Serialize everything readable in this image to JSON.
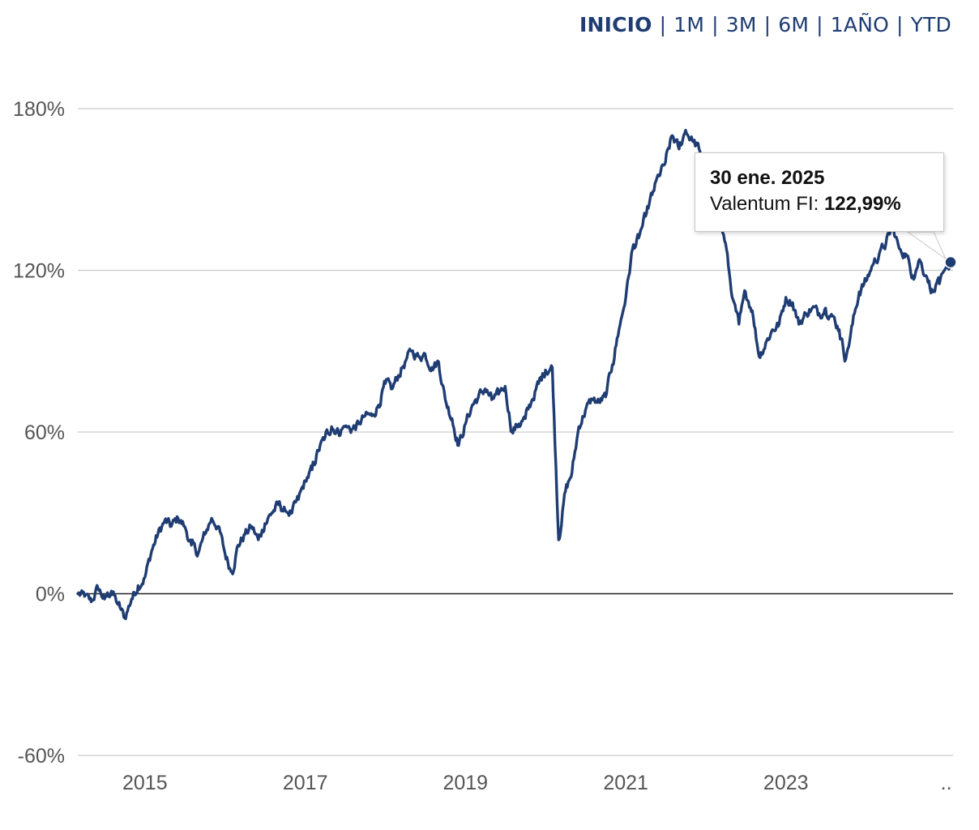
{
  "range_selector": {
    "options": [
      "INICIO",
      "1M",
      "3M",
      "6M",
      "1AÑO",
      "YTD"
    ],
    "active": "INICIO",
    "separator": "|"
  },
  "tooltip": {
    "date": "30 ene. 2025",
    "series": "Valentum FI:",
    "value": "122,99%"
  },
  "colors": {
    "series_line": "#1f3d73",
    "grid": "#cccccc",
    "zero_line": "#222222",
    "tick_text": "#555555"
  },
  "chart_data": {
    "type": "line",
    "ylim": [
      -60,
      180
    ],
    "y_ticks": [
      -60,
      0,
      60,
      120,
      180
    ],
    "y_tick_labels": [
      "-60%",
      "0%",
      "60%",
      "120%",
      "180%"
    ],
    "x_range": [
      "2014-03-01",
      "2025-02-01"
    ],
    "x_ticks": [
      "2015-01-01",
      "2017-01-01",
      "2019-01-01",
      "2021-01-01",
      "2023-01-01",
      "2025-01-01"
    ],
    "x_tick_labels": [
      "2015",
      "2017",
      "2019",
      "2021",
      "2023",
      ".."
    ],
    "grid": true,
    "legend": "none",
    "series": [
      {
        "name": "Valentum FI",
        "points": [
          [
            "2014-03-01",
            0
          ],
          [
            "2014-04-01",
            -1
          ],
          [
            "2014-05-01",
            -3
          ],
          [
            "2014-06-01",
            2
          ],
          [
            "2014-07-01",
            -2
          ],
          [
            "2014-08-01",
            1
          ],
          [
            "2014-09-01",
            -4
          ],
          [
            "2014-10-01",
            -9
          ],
          [
            "2014-11-01",
            -2
          ],
          [
            "2014-12-01",
            3
          ],
          [
            "2015-01-01",
            6
          ],
          [
            "2015-02-01",
            16
          ],
          [
            "2015-03-01",
            22
          ],
          [
            "2015-04-01",
            27
          ],
          [
            "2015-05-01",
            25
          ],
          [
            "2015-06-01",
            28
          ],
          [
            "2015-07-01",
            25
          ],
          [
            "2015-08-01",
            18
          ],
          [
            "2015-09-01",
            15
          ],
          [
            "2015-10-01",
            22
          ],
          [
            "2015-11-01",
            28
          ],
          [
            "2015-12-01",
            25
          ],
          [
            "2016-01-01",
            15
          ],
          [
            "2016-02-01",
            8
          ],
          [
            "2016-03-01",
            18
          ],
          [
            "2016-04-01",
            22
          ],
          [
            "2016-05-01",
            25
          ],
          [
            "2016-06-01",
            20
          ],
          [
            "2016-07-01",
            26
          ],
          [
            "2016-08-01",
            30
          ],
          [
            "2016-09-01",
            33
          ],
          [
            "2016-10-01",
            31
          ],
          [
            "2016-11-01",
            30
          ],
          [
            "2016-12-01",
            35
          ],
          [
            "2017-01-01",
            42
          ],
          [
            "2017-02-01",
            46
          ],
          [
            "2017-03-01",
            53
          ],
          [
            "2017-04-01",
            58
          ],
          [
            "2017-05-01",
            62
          ],
          [
            "2017-06-01",
            60
          ],
          [
            "2017-07-01",
            62
          ],
          [
            "2017-08-01",
            61
          ],
          [
            "2017-09-01",
            63
          ],
          [
            "2017-10-01",
            66
          ],
          [
            "2017-11-01",
            66
          ],
          [
            "2017-12-01",
            70
          ],
          [
            "2018-01-01",
            78
          ],
          [
            "2018-02-01",
            76
          ],
          [
            "2018-03-01",
            81
          ],
          [
            "2018-04-01",
            86
          ],
          [
            "2018-05-01",
            90
          ],
          [
            "2018-06-01",
            88
          ],
          [
            "2018-07-01",
            89
          ],
          [
            "2018-08-01",
            84
          ],
          [
            "2018-09-01",
            86
          ],
          [
            "2018-10-01",
            72
          ],
          [
            "2018-11-01",
            65
          ],
          [
            "2018-12-01",
            55
          ],
          [
            "2019-01-01",
            63
          ],
          [
            "2019-02-01",
            70
          ],
          [
            "2019-03-01",
            73
          ],
          [
            "2019-04-01",
            76
          ],
          [
            "2019-05-01",
            72
          ],
          [
            "2019-06-01",
            74
          ],
          [
            "2019-07-01",
            77
          ],
          [
            "2019-08-01",
            60
          ],
          [
            "2019-09-01",
            63
          ],
          [
            "2019-10-01",
            65
          ],
          [
            "2019-11-01",
            72
          ],
          [
            "2019-12-01",
            78
          ],
          [
            "2020-01-01",
            83
          ],
          [
            "2020-02-01",
            84
          ],
          [
            "2020-03-01",
            20
          ],
          [
            "2020-04-01",
            38
          ],
          [
            "2020-05-01",
            45
          ],
          [
            "2020-06-01",
            62
          ],
          [
            "2020-07-01",
            68
          ],
          [
            "2020-08-01",
            72
          ],
          [
            "2020-09-01",
            71
          ],
          [
            "2020-10-01",
            73
          ],
          [
            "2020-11-01",
            85
          ],
          [
            "2020-12-01",
            98
          ],
          [
            "2021-01-01",
            110
          ],
          [
            "2021-02-01",
            128
          ],
          [
            "2021-03-01",
            132
          ],
          [
            "2021-04-01",
            140
          ],
          [
            "2021-05-01",
            148
          ],
          [
            "2021-06-01",
            155
          ],
          [
            "2021-07-01",
            160
          ],
          [
            "2021-08-01",
            170
          ],
          [
            "2021-09-01",
            165
          ],
          [
            "2021-10-01",
            172
          ],
          [
            "2021-11-01",
            168
          ],
          [
            "2021-12-01",
            165
          ],
          [
            "2022-01-01",
            155
          ],
          [
            "2022-02-01",
            135
          ],
          [
            "2022-03-01",
            140
          ],
          [
            "2022-04-01",
            130
          ],
          [
            "2022-05-01",
            110
          ],
          [
            "2022-06-01",
            100
          ],
          [
            "2022-07-01",
            112
          ],
          [
            "2022-08-01",
            105
          ],
          [
            "2022-09-01",
            88
          ],
          [
            "2022-10-01",
            93
          ],
          [
            "2022-11-01",
            98
          ],
          [
            "2022-12-01",
            100
          ],
          [
            "2023-01-01",
            110
          ],
          [
            "2023-02-01",
            108
          ],
          [
            "2023-03-01",
            100
          ],
          [
            "2023-04-01",
            104
          ],
          [
            "2023-05-01",
            106
          ],
          [
            "2023-06-01",
            104
          ],
          [
            "2023-07-01",
            106
          ],
          [
            "2023-08-01",
            103
          ],
          [
            "2023-09-01",
            98
          ],
          [
            "2023-10-01",
            87
          ],
          [
            "2023-11-01",
            100
          ],
          [
            "2023-12-01",
            112
          ],
          [
            "2024-01-01",
            116
          ],
          [
            "2024-02-01",
            122
          ],
          [
            "2024-03-01",
            126
          ],
          [
            "2024-04-01",
            130
          ],
          [
            "2024-05-01",
            136
          ],
          [
            "2024-06-01",
            128
          ],
          [
            "2024-07-01",
            126
          ],
          [
            "2024-08-01",
            118
          ],
          [
            "2024-09-01",
            124
          ],
          [
            "2024-10-01",
            118
          ],
          [
            "2024-11-01",
            112
          ],
          [
            "2024-12-01",
            115
          ],
          [
            "2025-01-30",
            122.99
          ]
        ]
      }
    ],
    "highlighted_point": [
      "2025-01-30",
      122.99
    ]
  }
}
